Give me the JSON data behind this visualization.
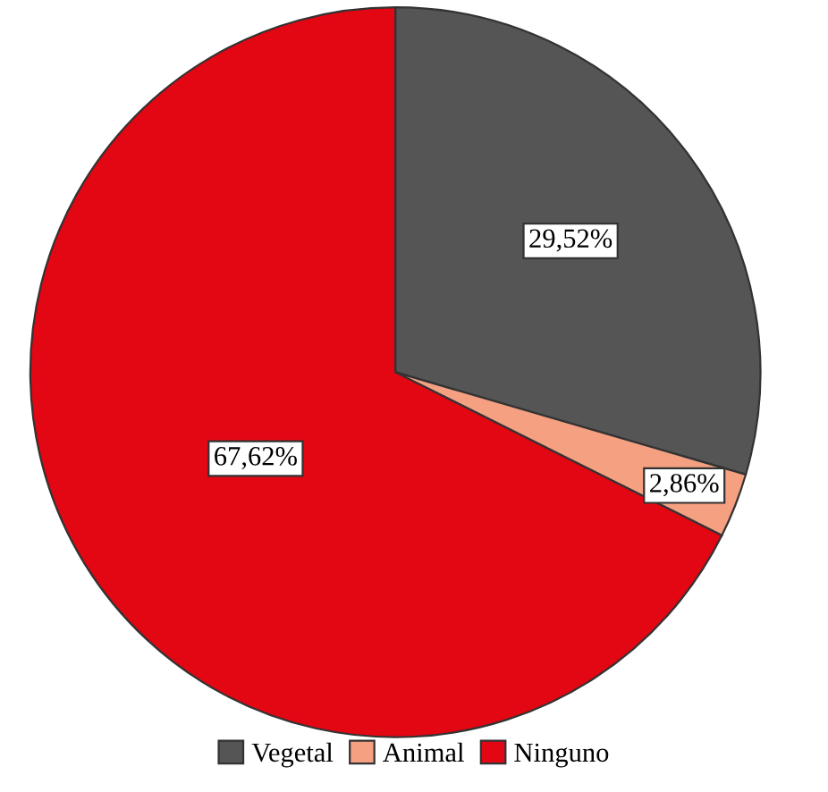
{
  "chart_data": {
    "type": "pie",
    "categories": [
      "Vegetal",
      "Animal",
      "Ninguno"
    ],
    "values": [
      29.52,
      2.86,
      67.62
    ],
    "colors": [
      "#555555",
      "#f4a081",
      "#e30613"
    ],
    "value_labels": [
      "29,52%",
      "2,86%",
      "67,62%"
    ],
    "legend": "bottom"
  }
}
